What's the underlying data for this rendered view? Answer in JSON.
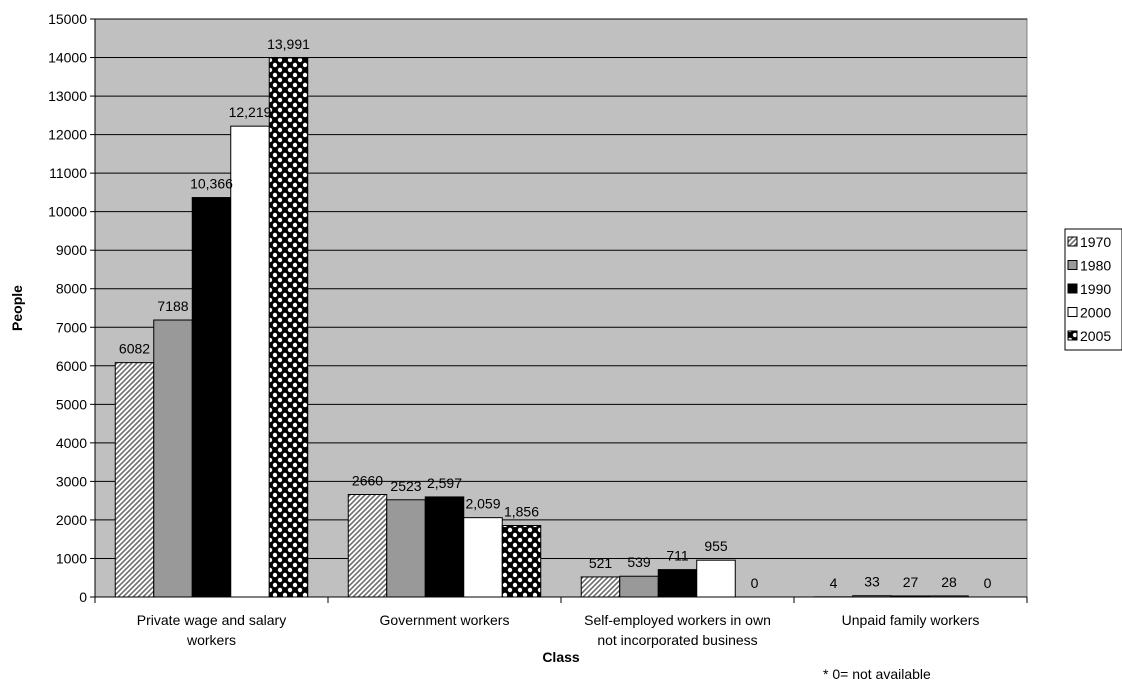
{
  "chart_data": {
    "type": "bar",
    "title": "",
    "xlabel": "Class",
    "ylabel": "People",
    "ylim": [
      0,
      15000
    ],
    "ytick_step": 1000,
    "grid": true,
    "legend_position": "right",
    "note": "* 0= not available",
    "categories": [
      [
        "Private wage and salary",
        "workers"
      ],
      [
        "Government workers"
      ],
      [
        "Self-employed workers in own",
        "not incorporated business"
      ],
      [
        "Unpaid family workers"
      ]
    ],
    "series": [
      {
        "name": "1970",
        "values": [
          6082,
          2660,
          521,
          4
        ],
        "labels": [
          "6082",
          "2660",
          "521",
          "4"
        ],
        "fill": "#b9b9b9",
        "pattern": "diagonal-stripes"
      },
      {
        "name": "1980",
        "values": [
          7188,
          2523,
          539,
          33
        ],
        "labels": [
          "7188",
          "2523",
          "539",
          "33"
        ],
        "fill": "#999999",
        "pattern": "solid"
      },
      {
        "name": "1990",
        "values": [
          10366,
          2597,
          711,
          27
        ],
        "labels": [
          "10,366",
          "2,597",
          "711",
          "27"
        ],
        "fill": "#000000",
        "pattern": "solid"
      },
      {
        "name": "2000",
        "values": [
          12219,
          2059,
          955,
          28
        ],
        "labels": [
          "12,219",
          "2,059",
          "955",
          "28"
        ],
        "fill": "#ffffff",
        "pattern": "solid"
      },
      {
        "name": "2005",
        "values": [
          13991,
          1856,
          0,
          0
        ],
        "labels": [
          "13,991",
          "1,856",
          "0",
          "0"
        ],
        "fill": "#000000",
        "pattern": "checker-diamond"
      }
    ],
    "plot_background": "#c0c0c0"
  }
}
